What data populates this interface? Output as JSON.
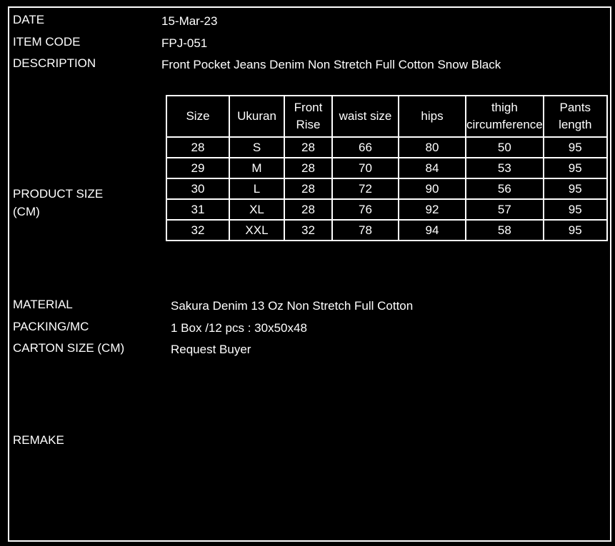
{
  "fields": {
    "date": {
      "label": "DATE",
      "value": "15-Mar-23"
    },
    "item_code": {
      "label": "ITEM CODE",
      "value": "FPJ-051"
    },
    "description": {
      "label": "DESCRIPTION",
      "value": "Front Pocket Jeans Denim Non Stretch Full Cotton Snow Black"
    },
    "product_size": {
      "label": "PRODUCT SIZE (CM)"
    },
    "material": {
      "label": "MATERIAL",
      "value": "Sakura Denim 13 Oz Non Stretch Full Cotton"
    },
    "packing": {
      "label": "PACKING/MC",
      "value": "1 Box /12 pcs : 30x50x48"
    },
    "carton_size": {
      "label": "CARTON SIZE (CM)",
      "value": "Request Buyer"
    },
    "remake": {
      "label": "REMAKE"
    }
  },
  "table": {
    "columns": [
      "Size",
      "Ukuran",
      "Front Rise",
      "waist size",
      "hips",
      "thigh circumference",
      "Pants length"
    ],
    "rows": [
      [
        "28",
        "S",
        "28",
        "66",
        "80",
        "50",
        "95"
      ],
      [
        "29",
        "M",
        "28",
        "70",
        "84",
        "53",
        "95"
      ],
      [
        "30",
        "L",
        "28",
        "72",
        "90",
        "56",
        "95"
      ],
      [
        "31",
        "XL",
        "28",
        "76",
        "92",
        "57",
        "95"
      ],
      [
        "32",
        "XXL",
        "32",
        "78",
        "94",
        "58",
        "95"
      ]
    ]
  }
}
